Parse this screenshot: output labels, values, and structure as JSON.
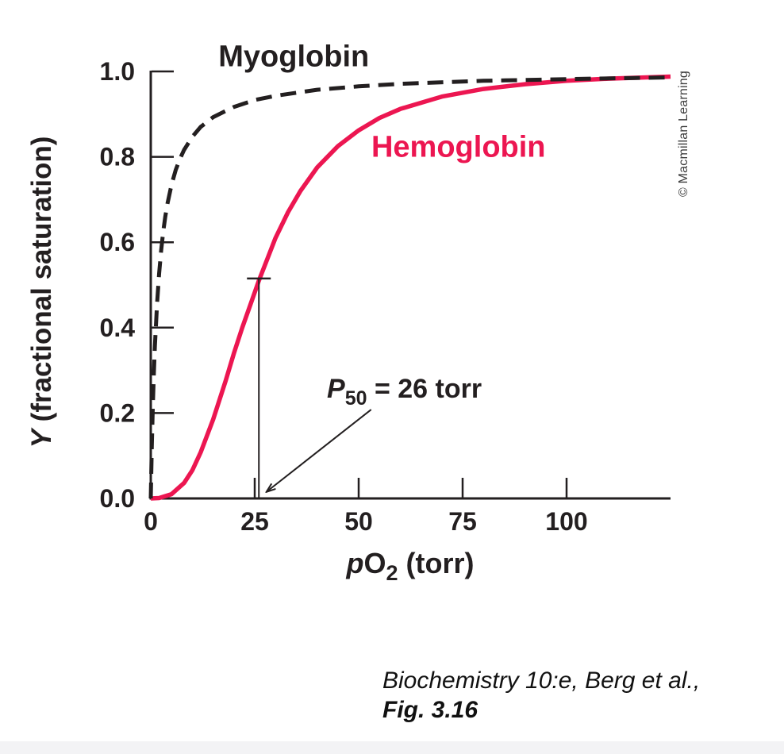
{
  "figure": {
    "credit": "© Macmillan Learning",
    "citation": {
      "line1": "Biochemistry 10:e, Berg et al.,",
      "line2": "Fig. 3.16"
    }
  },
  "chart_data": {
    "type": "line",
    "title": "",
    "xlabel": "pO2 (torr)",
    "ylabel": "Y (fractional saturation)",
    "xlabel_parts": {
      "italic": "p",
      "main": "O",
      "sub": "2",
      "rest": " (torr)"
    },
    "ylabel_parts": {
      "italic": "Y",
      "rest": " (fractional saturation)"
    },
    "xlim": [
      0,
      125
    ],
    "ylim": [
      0,
      1
    ],
    "x_ticks": [
      0,
      25,
      50,
      75,
      100
    ],
    "x_tick_labels": [
      "0",
      "25",
      "50",
      "75",
      "100"
    ],
    "y_ticks": [
      0,
      0.2,
      0.4,
      0.6,
      0.8,
      1
    ],
    "y_tick_labels": [
      "0.0",
      "0.2",
      "0.4",
      "0.6",
      "0.8",
      "1.0"
    ],
    "grid": false,
    "legend_position": "inline-labels",
    "axis_color": "#231f20",
    "series": [
      {
        "name": "Myoglobin",
        "color": "#231f20",
        "line_style": "dashed",
        "label_at": {
          "x": 34.4,
          "y": 1.012
        },
        "x": [
          0,
          0.25,
          0.5,
          0.75,
          1,
          1.5,
          2,
          2.5,
          3,
          3.5,
          4,
          5,
          6,
          7,
          8,
          10,
          12,
          15,
          20,
          25,
          30,
          40,
          50,
          60,
          80,
          100,
          125
        ],
        "y": [
          0,
          0.122,
          0.217,
          0.294,
          0.357,
          0.455,
          0.526,
          0.581,
          0.625,
          0.66,
          0.69,
          0.735,
          0.769,
          0.795,
          0.816,
          0.847,
          0.87,
          0.893,
          0.917,
          0.933,
          0.943,
          0.957,
          0.965,
          0.971,
          0.978,
          0.982,
          0.986
        ]
      },
      {
        "name": "Hemoglobin",
        "color": "#ec1651",
        "line_style": "solid",
        "label_at": {
          "x": 74,
          "y": 0.8
        },
        "x": [
          0,
          2,
          5,
          8,
          10,
          12,
          15,
          18,
          20,
          22,
          24,
          26,
          28,
          30,
          33,
          36,
          40,
          45,
          50,
          55,
          60,
          70,
          80,
          90,
          100,
          110,
          125
        ],
        "y": [
          0,
          0.001,
          0.01,
          0.036,
          0.066,
          0.108,
          0.185,
          0.275,
          0.34,
          0.4,
          0.455,
          0.51,
          0.56,
          0.61,
          0.67,
          0.72,
          0.775,
          0.825,
          0.862,
          0.891,
          0.912,
          0.941,
          0.959,
          0.97,
          0.978,
          0.983,
          0.988
        ]
      }
    ],
    "annotation": {
      "label": "P50 = 26 torr",
      "parts": {
        "italic": "P",
        "sub": "50",
        "rest": " = 26 torr"
      },
      "x_torr": 26,
      "y_saturation": 0.5,
      "marker_top": 0.515,
      "marker_halfwidth_px": 15,
      "arrow": {
        "from": {
          "x": 53,
          "y": 0.208
        },
        "to": {
          "x": 27.9,
          "y": 0.016
        }
      }
    }
  }
}
